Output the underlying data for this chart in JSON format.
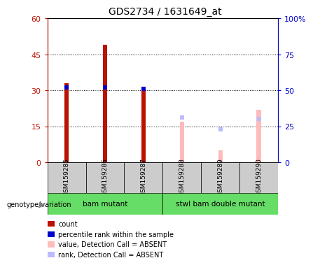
{
  "title": "GDS2734 / 1631649_at",
  "samples": [
    "GSM159285",
    "GSM159286",
    "GSM159287",
    "GSM159288",
    "GSM159289",
    "GSM159290"
  ],
  "count_values": [
    33,
    49,
    31,
    null,
    null,
    null
  ],
  "percentile_rank": [
    52,
    52,
    51,
    null,
    null,
    null
  ],
  "value_absent": [
    null,
    null,
    null,
    17,
    5,
    22
  ],
  "rank_absent": [
    null,
    null,
    null,
    31,
    23,
    30
  ],
  "groups": [
    {
      "label": "bam mutant",
      "indices": [
        0,
        1,
        2
      ],
      "color": "#66dd66"
    },
    {
      "label": "stwl bam double mutant",
      "indices": [
        3,
        4,
        5
      ],
      "color": "#66dd66"
    }
  ],
  "ylim_left": [
    0,
    60
  ],
  "ylim_right": [
    0,
    100
  ],
  "yticks_left": [
    0,
    15,
    30,
    45,
    60
  ],
  "yticks_right": [
    0,
    25,
    50,
    75,
    100
  ],
  "yticklabels_left": [
    "0",
    "15",
    "30",
    "45",
    "60"
  ],
  "yticklabels_right": [
    "0",
    "25",
    "50",
    "75",
    "100%"
  ],
  "color_count": "#bb1100",
  "color_rank": "#0000cc",
  "color_value_absent": "#ffbbbb",
  "color_rank_absent": "#bbbbff",
  "legend_items": [
    {
      "label": "count",
      "color": "#bb1100"
    },
    {
      "label": "percentile rank within the sample",
      "color": "#0000cc"
    },
    {
      "label": "value, Detection Call = ABSENT",
      "color": "#ffbbbb"
    },
    {
      "label": "rank, Detection Call = ABSENT",
      "color": "#bbbbff"
    }
  ],
  "group_label": "genotype/variation",
  "sample_bg": "#cccccc",
  "bar_width": 0.12
}
